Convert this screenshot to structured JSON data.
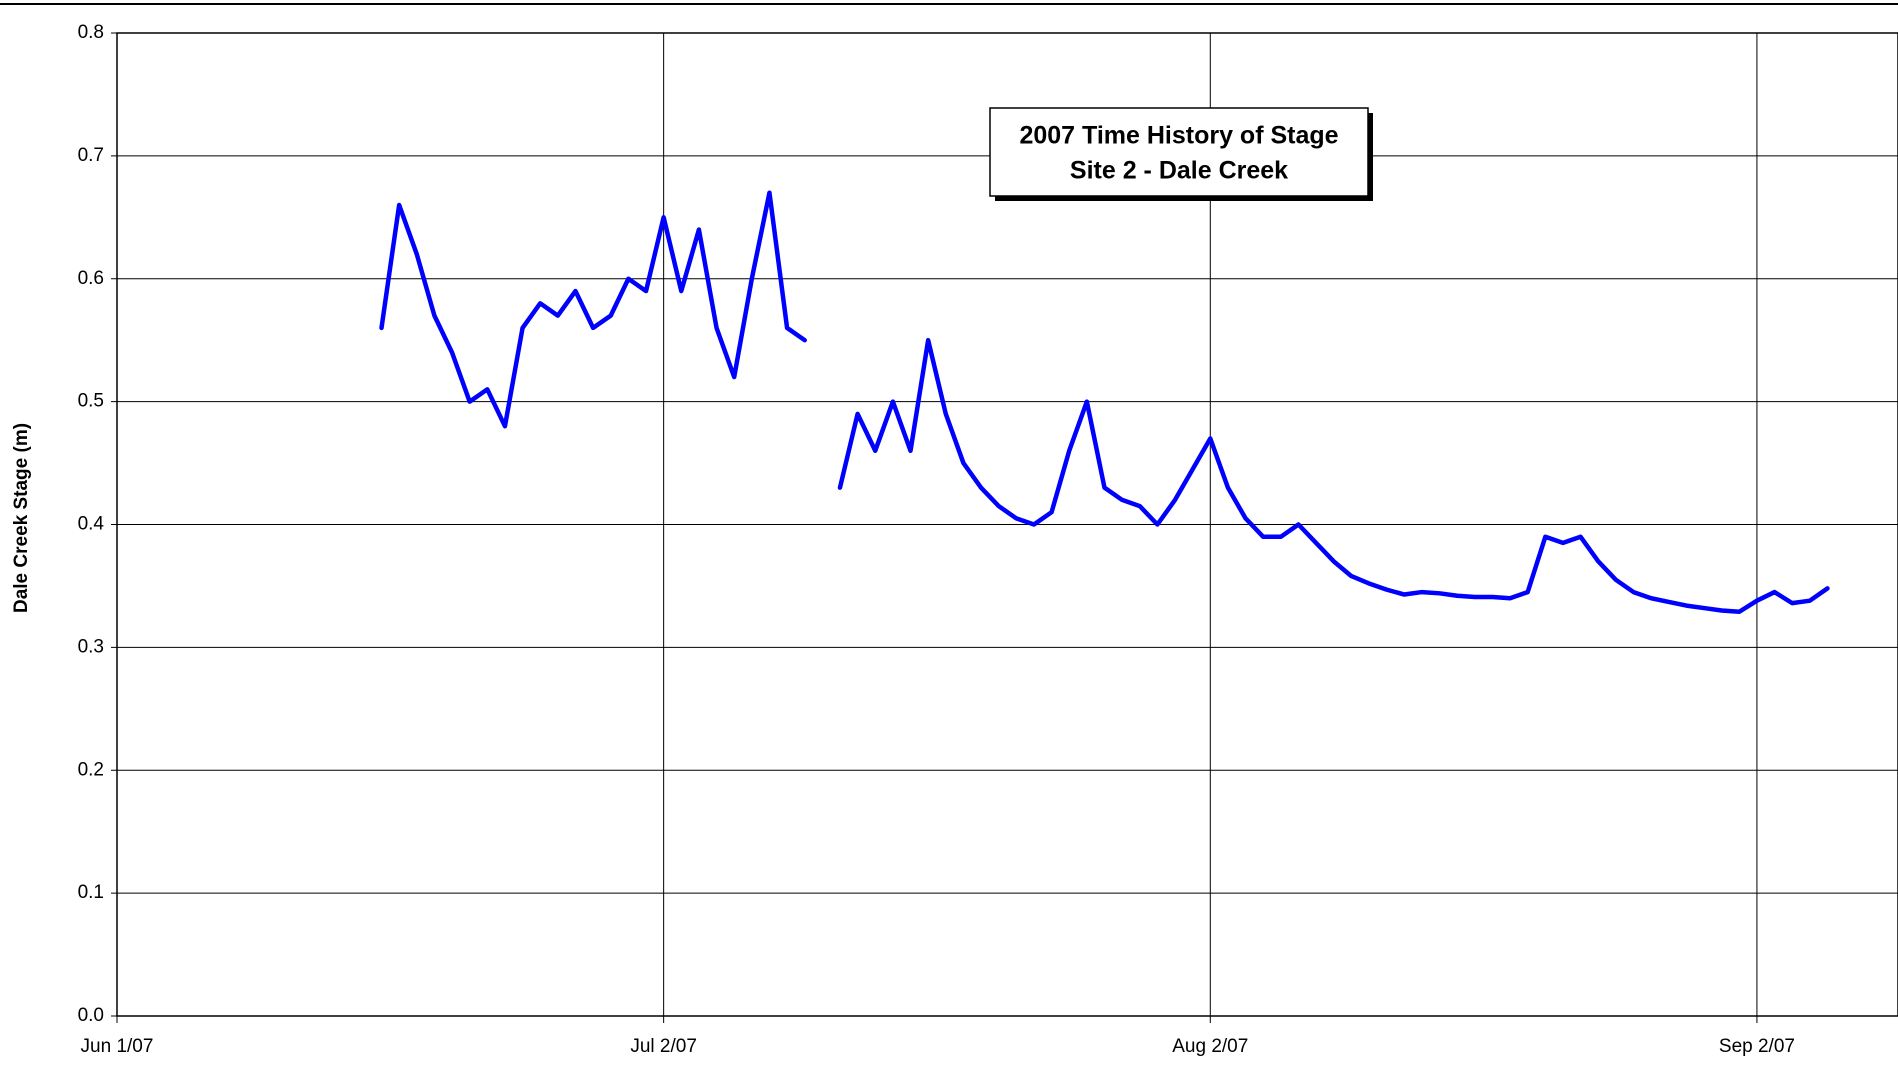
{
  "chart_data": {
    "type": "line",
    "title": "2007 Time History of Stage",
    "subtitle": "Site 2 - Dale Creek",
    "y_label": "Dale Creek Stage (m)",
    "x": [
      "2007-06-16",
      "2007-06-17",
      "2007-06-18",
      "2007-06-19",
      "2007-06-20",
      "2007-06-21",
      "2007-06-22",
      "2007-06-23",
      "2007-06-24",
      "2007-06-25",
      "2007-06-26",
      "2007-06-27",
      "2007-06-28",
      "2007-06-29",
      "2007-06-30",
      "2007-07-01",
      "2007-07-02",
      "2007-07-03",
      "2007-07-04",
      "2007-07-05",
      "2007-07-06",
      "2007-07-07",
      "2007-07-08",
      "2007-07-09",
      "2007-07-10",
      "2007-07-11",
      "2007-07-12",
      "2007-07-13",
      "2007-07-14",
      "2007-07-15",
      "2007-07-16",
      "2007-07-17",
      "2007-07-18",
      "2007-07-19",
      "2007-07-20",
      "2007-07-21",
      "2007-07-22",
      "2007-07-23",
      "2007-07-24",
      "2007-07-25",
      "2007-07-26",
      "2007-07-27",
      "2007-07-28",
      "2007-07-29",
      "2007-07-30",
      "2007-07-31",
      "2007-08-01",
      "2007-08-02",
      "2007-08-03",
      "2007-08-04",
      "2007-08-05",
      "2007-08-06",
      "2007-08-07",
      "2007-08-08",
      "2007-08-09",
      "2007-08-10",
      "2007-08-11",
      "2007-08-12",
      "2007-08-13",
      "2007-08-14",
      "2007-08-15",
      "2007-08-16",
      "2007-08-17",
      "2007-08-18",
      "2007-08-19",
      "2007-08-20",
      "2007-08-21",
      "2007-08-22",
      "2007-08-23",
      "2007-08-24",
      "2007-08-25",
      "2007-08-26",
      "2007-08-27",
      "2007-08-28",
      "2007-08-29",
      "2007-08-30",
      "2007-08-31",
      "2007-09-01",
      "2007-09-02",
      "2007-09-03",
      "2007-09-04",
      "2007-09-05",
      "2007-09-06"
    ],
    "series": [
      {
        "name": "Stage",
        "color": "#0000ff",
        "values": [
          0.56,
          0.66,
          0.62,
          0.57,
          0.54,
          0.5,
          0.51,
          0.48,
          0.56,
          0.58,
          0.57,
          0.59,
          0.56,
          0.57,
          0.6,
          0.59,
          0.65,
          0.59,
          0.64,
          0.56,
          0.52,
          0.6,
          0.67,
          0.56,
          0.55,
          null,
          0.43,
          0.49,
          0.46,
          0.5,
          0.46,
          0.55,
          0.49,
          0.45,
          0.43,
          0.415,
          0.405,
          0.4,
          0.41,
          0.46,
          0.5,
          0.43,
          0.42,
          0.415,
          0.4,
          0.42,
          0.445,
          0.47,
          0.43,
          0.405,
          0.39,
          0.39,
          0.4,
          0.385,
          0.37,
          0.358,
          0.352,
          0.347,
          0.343,
          0.345,
          0.344,
          0.342,
          0.341,
          0.341,
          0.34,
          0.345,
          0.39,
          0.385,
          0.39,
          0.37,
          0.355,
          0.345,
          0.34,
          0.337,
          0.334,
          0.332,
          0.33,
          0.329,
          0.338,
          0.345,
          0.336,
          0.338,
          0.348
        ]
      }
    ],
    "xlim": [
      "2007-06-01",
      "2007-09-10"
    ],
    "xticks": [
      {
        "value": "2007-06-01",
        "label": "Jun 1/07"
      },
      {
        "value": "2007-07-02",
        "label": "Jul 2/07"
      },
      {
        "value": "2007-08-02",
        "label": "Aug 2/07"
      },
      {
        "value": "2007-09-02",
        "label": "Sep 2/07"
      }
    ],
    "ylim": [
      0,
      0.8
    ],
    "yticks": [
      {
        "value": 0,
        "label": "0.0"
      },
      0.1,
      0.2,
      0.3,
      0.4,
      0.5,
      0.6,
      0.7,
      0.8
    ],
    "grid": true
  }
}
